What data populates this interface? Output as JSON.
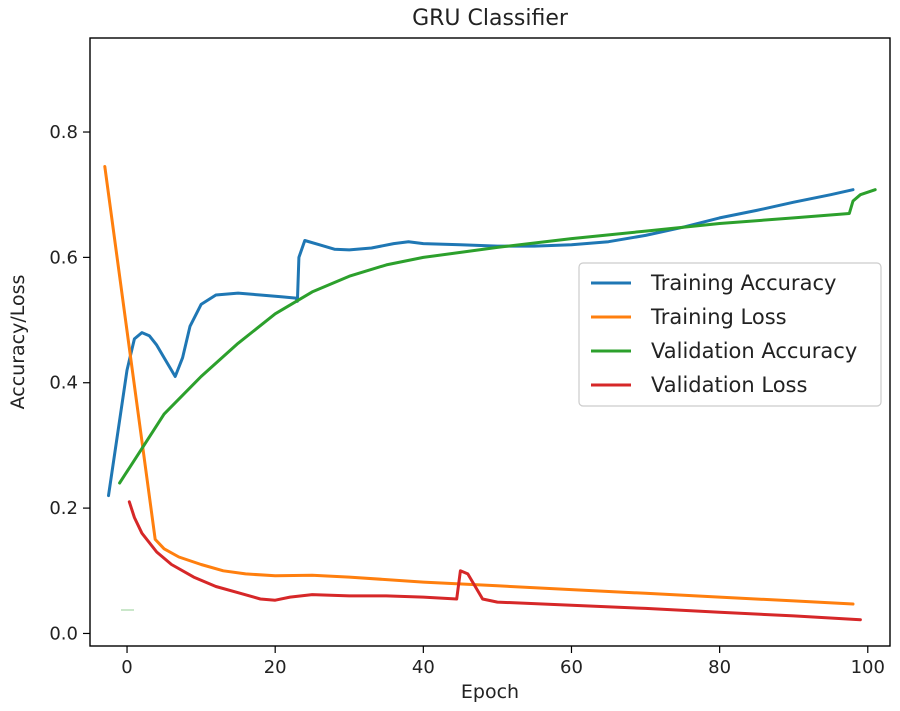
{
  "chart_data": {
    "type": "line",
    "title": "GRU Classifier",
    "xlabel": "Epoch",
    "ylabel": "Accuracy/Loss",
    "xlim": [
      -5,
      103
    ],
    "ylim": [
      -0.02,
      0.95
    ],
    "x_ticks": [
      0,
      20,
      40,
      60,
      80,
      100
    ],
    "y_ticks": [
      0.0,
      0.2,
      0.4,
      0.6,
      0.8
    ],
    "x_tick_labels": [
      "0",
      "20",
      "40",
      "60",
      "80",
      "100"
    ],
    "y_tick_labels": [
      "0.0",
      "0.2",
      "0.4",
      "0.6",
      "0.8"
    ],
    "grid": false,
    "legend_position": "center-right",
    "series": [
      {
        "name": "Training Accuracy",
        "color": "#1f77b4",
        "points": [
          [
            -2.5,
            0.22
          ],
          [
            0,
            0.42
          ],
          [
            1,
            0.47
          ],
          [
            2,
            0.48
          ],
          [
            3,
            0.475
          ],
          [
            4,
            0.46
          ],
          [
            5,
            0.44
          ],
          [
            6.5,
            0.41
          ],
          [
            7.5,
            0.44
          ],
          [
            8.5,
            0.49
          ],
          [
            10,
            0.525
          ],
          [
            12,
            0.54
          ],
          [
            15,
            0.543
          ],
          [
            18,
            0.54
          ],
          [
            21,
            0.537
          ],
          [
            22.8,
            0.535
          ],
          [
            23,
            0.53
          ],
          [
            23.2,
            0.6
          ],
          [
            24,
            0.627
          ],
          [
            26,
            0.62
          ],
          [
            28,
            0.613
          ],
          [
            30,
            0.612
          ],
          [
            33,
            0.615
          ],
          [
            36,
            0.622
          ],
          [
            38,
            0.625
          ],
          [
            40,
            0.622
          ],
          [
            45,
            0.62
          ],
          [
            50,
            0.618
          ],
          [
            55,
            0.618
          ],
          [
            60,
            0.62
          ],
          [
            65,
            0.625
          ],
          [
            70,
            0.635
          ],
          [
            75,
            0.648
          ],
          [
            80,
            0.663
          ],
          [
            85,
            0.675
          ],
          [
            90,
            0.688
          ],
          [
            95,
            0.7
          ],
          [
            98,
            0.708
          ]
        ]
      },
      {
        "name": "Training Loss",
        "color": "#ff7f0e",
        "points": [
          [
            -3,
            0.745
          ],
          [
            3.8,
            0.15
          ],
          [
            5,
            0.135
          ],
          [
            7,
            0.122
          ],
          [
            10,
            0.11
          ],
          [
            13,
            0.1
          ],
          [
            16,
            0.095
          ],
          [
            20,
            0.092
          ],
          [
            25,
            0.093
          ],
          [
            30,
            0.09
          ],
          [
            40,
            0.082
          ],
          [
            50,
            0.076
          ],
          [
            60,
            0.07
          ],
          [
            70,
            0.064
          ],
          [
            80,
            0.058
          ],
          [
            90,
            0.052
          ],
          [
            98,
            0.047
          ]
        ]
      },
      {
        "name": "Validation Accuracy",
        "color": "#2ca02c",
        "points": [
          [
            -1,
            0.24
          ],
          [
            2,
            0.295
          ],
          [
            5,
            0.35
          ],
          [
            10,
            0.41
          ],
          [
            15,
            0.463
          ],
          [
            20,
            0.51
          ],
          [
            25,
            0.545
          ],
          [
            30,
            0.57
          ],
          [
            35,
            0.588
          ],
          [
            40,
            0.6
          ],
          [
            50,
            0.616
          ],
          [
            60,
            0.63
          ],
          [
            70,
            0.642
          ],
          [
            80,
            0.654
          ],
          [
            90,
            0.663
          ],
          [
            97.5,
            0.67
          ],
          [
            98,
            0.69
          ],
          [
            99,
            0.7
          ],
          [
            101,
            0.708
          ]
        ]
      },
      {
        "name": "Validation Loss",
        "color": "#d62728",
        "points": [
          [
            0.3,
            0.21
          ],
          [
            1,
            0.185
          ],
          [
            2,
            0.16
          ],
          [
            4,
            0.13
          ],
          [
            6,
            0.11
          ],
          [
            9,
            0.09
          ],
          [
            12,
            0.075
          ],
          [
            15,
            0.065
          ],
          [
            18,
            0.055
          ],
          [
            20,
            0.053
          ],
          [
            22,
            0.058
          ],
          [
            25,
            0.062
          ],
          [
            30,
            0.06
          ],
          [
            35,
            0.06
          ],
          [
            40,
            0.058
          ],
          [
            44.5,
            0.055
          ],
          [
            45,
            0.1
          ],
          [
            46,
            0.095
          ],
          [
            48,
            0.055
          ],
          [
            50,
            0.05
          ],
          [
            60,
            0.045
          ],
          [
            70,
            0.04
          ],
          [
            80,
            0.034
          ],
          [
            90,
            0.028
          ],
          [
            99,
            0.022
          ]
        ]
      }
    ]
  }
}
